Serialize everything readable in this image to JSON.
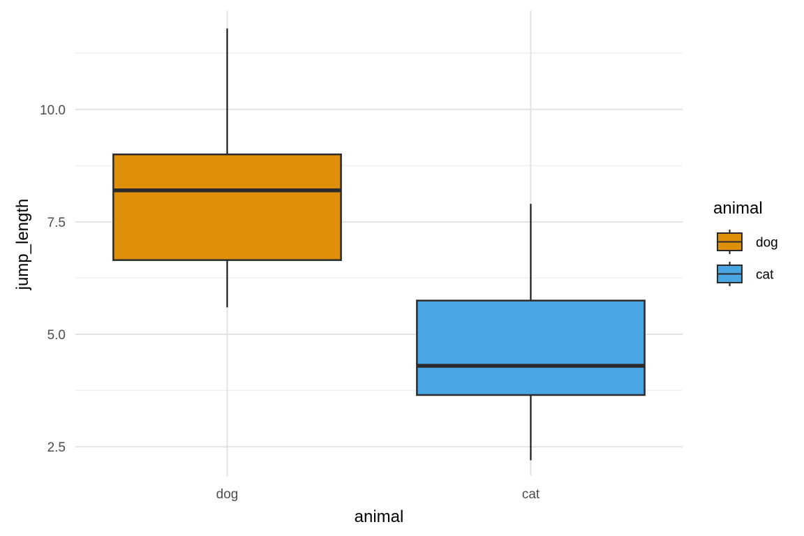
{
  "chart_data": {
    "type": "boxplot",
    "xlabel": "animal",
    "ylabel": "jump_length",
    "categories": [
      "dog",
      "cat"
    ],
    "ylim": [
      1.85,
      12.2
    ],
    "y_ticks": [
      2.5,
      5.0,
      7.5,
      10.0
    ],
    "y_tick_labels": [
      "2.5",
      "5.0",
      "7.5",
      "10.0"
    ],
    "grid": true,
    "legend": {
      "title": "animal",
      "position": "right",
      "entries": [
        "dog",
        "cat"
      ]
    },
    "boxes": [
      {
        "category": "dog",
        "min": 5.6,
        "q1": 6.65,
        "median": 8.2,
        "q3": 9.0,
        "max": 11.8,
        "color": "#E08F0A"
      },
      {
        "category": "cat",
        "min": 2.2,
        "q1": 3.65,
        "median": 4.3,
        "q3": 5.75,
        "max": 7.9,
        "color": "#4AA5E3"
      }
    ]
  }
}
